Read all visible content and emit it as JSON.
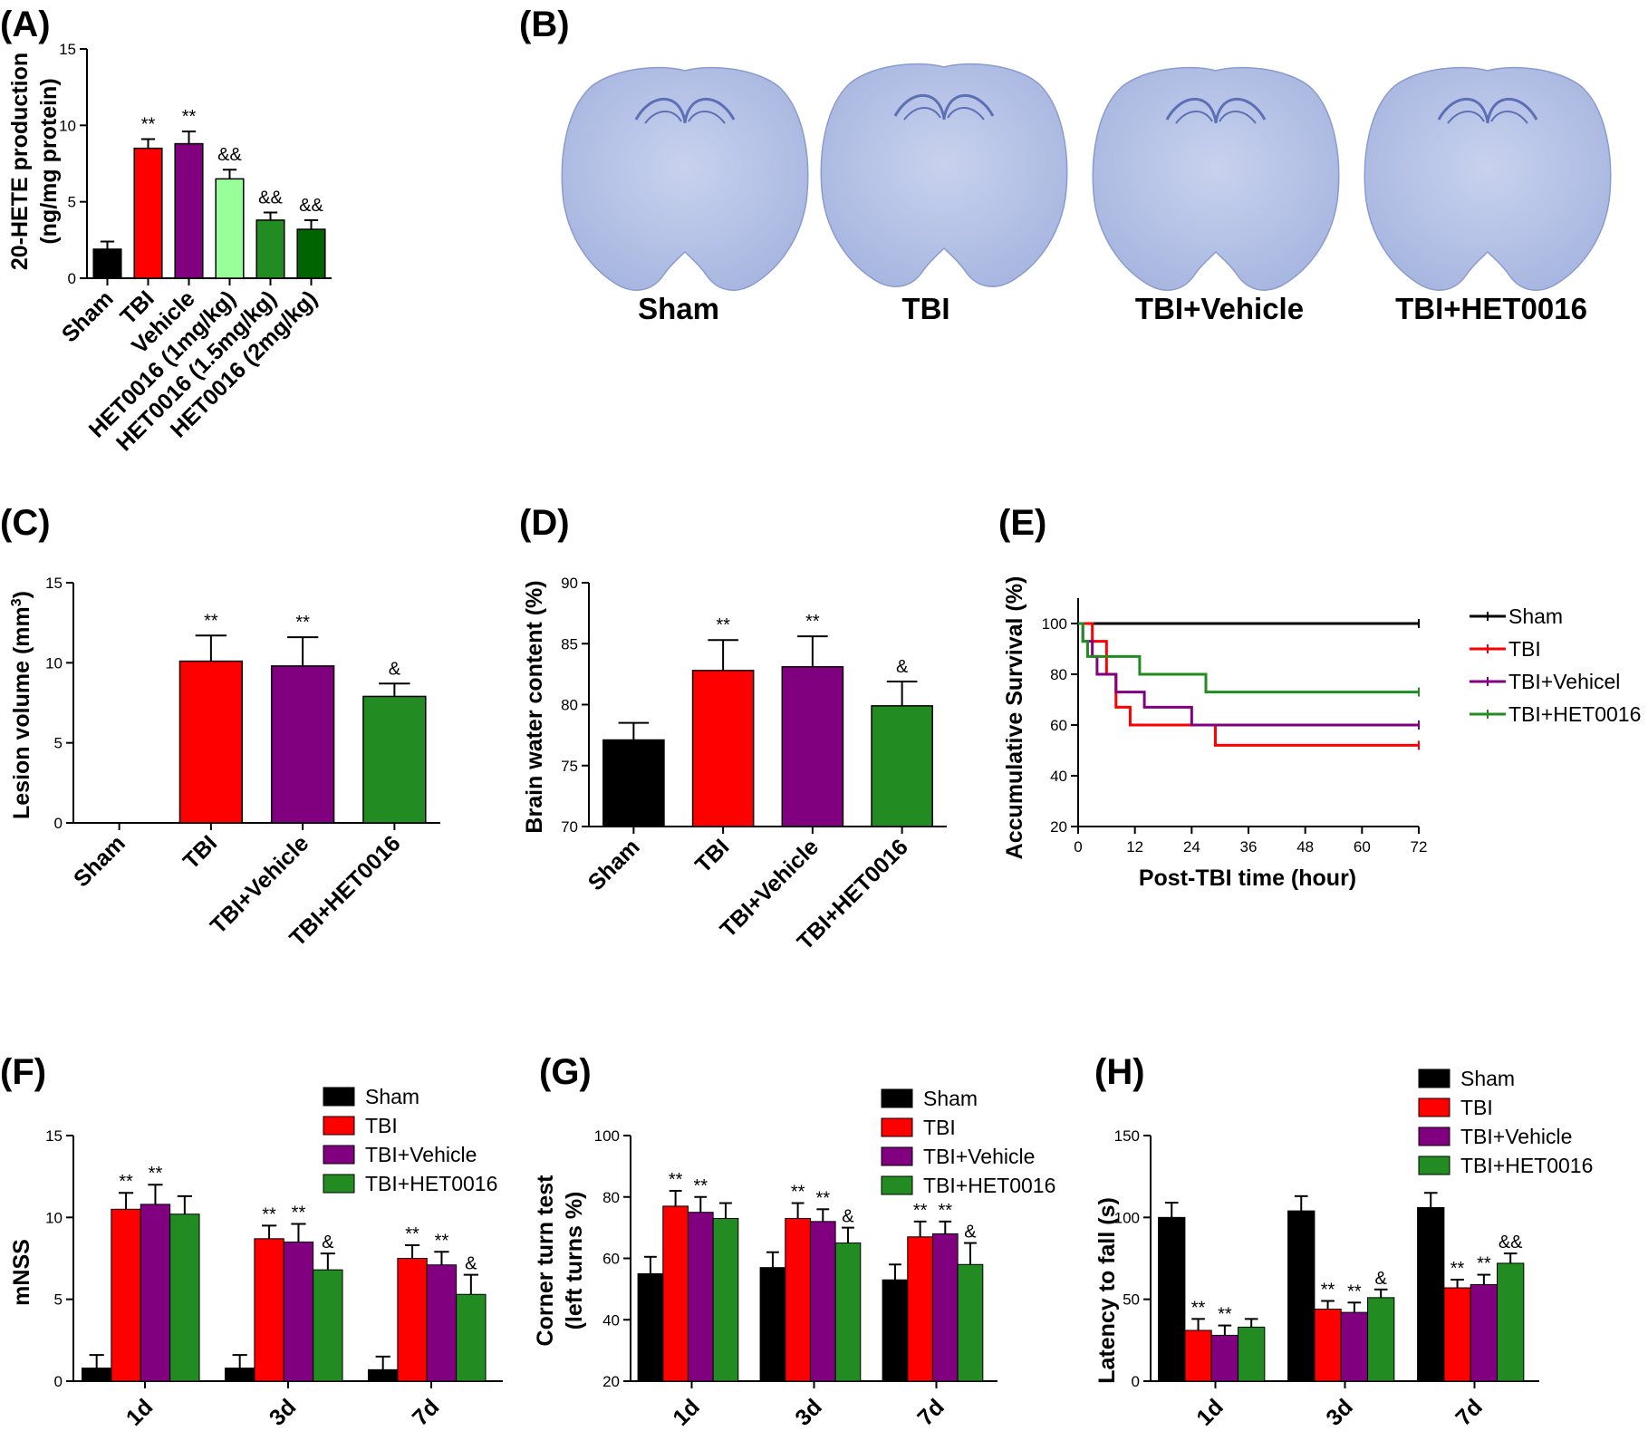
{
  "panels": {
    "A": {
      "label": "(A)",
      "chart_data": {
        "type": "bar",
        "ylabel_line1": "20-HETE production",
        "ylabel_line2": "(ng/mg protein)",
        "ylim": [
          0,
          15
        ],
        "yticks": [
          "0",
          "5",
          "10",
          "15"
        ],
        "categories": [
          "Sham",
          "TBI",
          "Vehicle",
          "HET0016 (1mg/kg)",
          "HET0016 (1.5mg/kg)",
          "HET0016 (2mg/kg)"
        ],
        "values": [
          1.9,
          8.5,
          8.8,
          6.5,
          3.8,
          3.2
        ],
        "errors": [
          0.5,
          0.6,
          0.8,
          0.6,
          0.5,
          0.6
        ],
        "annotations": [
          "",
          "**",
          "**",
          "&&",
          "&&",
          "&&"
        ],
        "colors": [
          "#000000",
          "#ff0000",
          "#800080",
          "#99ff99",
          "#228b22",
          "#006400"
        ]
      }
    },
    "B": {
      "label": "(B)",
      "image_labels": [
        "Sham",
        "TBI",
        "TBI+Vehicle",
        "TBI+HET0016"
      ]
    },
    "C": {
      "label": "(C)",
      "chart_data": {
        "type": "bar",
        "ylabel": "Lesion volume (mm",
        "ylabel_sup": "3",
        "ylabel_close": ")",
        "ylim": [
          0,
          15
        ],
        "yticks": [
          "0",
          "5",
          "10",
          "15"
        ],
        "categories": [
          "Sham",
          "TBI",
          "TBI+Vehicle",
          "TBI+HET0016"
        ],
        "values": [
          0,
          10.1,
          9.8,
          7.9
        ],
        "errors": [
          0,
          1.6,
          1.8,
          0.8
        ],
        "annotations": [
          "",
          "**",
          "**",
          "&"
        ],
        "colors": [
          "#000000",
          "#ff0000",
          "#800080",
          "#228b22"
        ]
      }
    },
    "D": {
      "label": "(D)",
      "chart_data": {
        "type": "bar",
        "ylabel": "Brain water content (%)",
        "ylim": [
          70,
          90
        ],
        "yticks": [
          "70",
          "75",
          "80",
          "85",
          "90"
        ],
        "categories": [
          "Sham",
          "TBI",
          "TBI+Vehicle",
          "TBI+HET0016"
        ],
        "values": [
          77.1,
          82.8,
          83.1,
          79.9
        ],
        "errors": [
          1.4,
          2.5,
          2.5,
          2.0
        ],
        "annotations": [
          "",
          "**",
          "**",
          "&"
        ],
        "colors": [
          "#000000",
          "#ff0000",
          "#800080",
          "#228b22"
        ]
      }
    },
    "E": {
      "label": "(E)",
      "chart_data": {
        "type": "line",
        "xlabel": "Post-TBI time (hour)",
        "ylabel": "Accumulative Survival (%)",
        "xlim": [
          0,
          72
        ],
        "ylim": [
          20,
          110
        ],
        "xticks": [
          "0",
          "12",
          "24",
          "36",
          "48",
          "60",
          "72"
        ],
        "yticks": [
          "20",
          "40",
          "60",
          "80",
          "100"
        ],
        "series": [
          {
            "name": "Sham",
            "color": "#000000",
            "steps": [
              [
                0,
                100
              ],
              [
                72,
                100
              ]
            ]
          },
          {
            "name": "TBI",
            "color": "#ff0000",
            "steps": [
              [
                0,
                100
              ],
              [
                3,
                93
              ],
              [
                6,
                80
              ],
              [
                8,
                67
              ],
              [
                11,
                60
              ],
              [
                29,
                52
              ],
              [
                72,
                52
              ]
            ]
          },
          {
            "name": "TBI+Vehicel",
            "color": "#800080",
            "steps": [
              [
                0,
                100
              ],
              [
                1,
                93
              ],
              [
                3,
                87
              ],
              [
                4,
                80
              ],
              [
                8,
                73
              ],
              [
                14,
                67
              ],
              [
                24,
                60
              ],
              [
                72,
                60
              ]
            ]
          },
          {
            "name": "TBI+HET0016",
            "color": "#228b22",
            "steps": [
              [
                0,
                100
              ],
              [
                1,
                93
              ],
              [
                2,
                87
              ],
              [
                13,
                80
              ],
              [
                27,
                73
              ],
              [
                72,
                73
              ]
            ]
          }
        ]
      }
    },
    "F": {
      "label": "(F)",
      "chart_data": {
        "type": "bar",
        "ylabel": "mNSS",
        "ylim": [
          0,
          15
        ],
        "yticks": [
          "0",
          "5",
          "10",
          "15"
        ],
        "categories": [
          "1d",
          "3d",
          "7d"
        ],
        "series": [
          {
            "name": "Sham",
            "color": "#000000",
            "values": [
              0.8,
              0.8,
              0.7
            ],
            "errors": [
              0.8,
              0.8,
              0.8
            ],
            "annotations": [
              "",
              "",
              ""
            ]
          },
          {
            "name": "TBI",
            "color": "#ff0000",
            "values": [
              10.5,
              8.7,
              7.5
            ],
            "errors": [
              1.0,
              0.8,
              0.8
            ],
            "annotations": [
              "**",
              "**",
              "**"
            ]
          },
          {
            "name": "TBI+Vehicle",
            "color": "#800080",
            "values": [
              10.8,
              8.5,
              7.1
            ],
            "errors": [
              1.2,
              1.1,
              0.8
            ],
            "annotations": [
              "**",
              "**",
              "**"
            ]
          },
          {
            "name": "TBI+HET0016",
            "color": "#228b22",
            "values": [
              10.2,
              6.8,
              5.3
            ],
            "errors": [
              1.1,
              1.0,
              1.2
            ],
            "annotations": [
              "",
              "&",
              "&"
            ]
          }
        ]
      }
    },
    "G": {
      "label": "(G)",
      "chart_data": {
        "type": "bar",
        "ylabel_line1": "Corner turn test",
        "ylabel_line2": "(left turns %)",
        "ylim": [
          20,
          100
        ],
        "yticks": [
          "20",
          "40",
          "60",
          "80",
          "100"
        ],
        "categories": [
          "1d",
          "3d",
          "7d"
        ],
        "series": [
          {
            "name": "Sham",
            "color": "#000000",
            "values": [
              55,
              57,
              53
            ],
            "errors": [
              5.5,
              5,
              5
            ],
            "annotations": [
              "",
              "",
              ""
            ]
          },
          {
            "name": "TBI",
            "color": "#ff0000",
            "values": [
              77,
              73,
              67
            ],
            "errors": [
              5,
              5,
              5
            ],
            "annotations": [
              "**",
              "**",
              "**"
            ]
          },
          {
            "name": "TBI+Vehicle",
            "color": "#800080",
            "values": [
              75,
              72,
              68
            ],
            "errors": [
              5,
              4,
              4
            ],
            "annotations": [
              "**",
              "**",
              "**"
            ]
          },
          {
            "name": "TBI+HET0016",
            "color": "#228b22",
            "values": [
              73,
              65,
              58
            ],
            "errors": [
              5,
              5,
              7
            ],
            "annotations": [
              "",
              "&",
              "&"
            ]
          }
        ]
      }
    },
    "H": {
      "label": "(H)",
      "chart_data": {
        "type": "bar",
        "ylabel": "Latency to fall (s)",
        "ylim": [
          0,
          150
        ],
        "yticks": [
          "0",
          "50",
          "100",
          "150"
        ],
        "categories": [
          "1d",
          "3d",
          "7d"
        ],
        "series": [
          {
            "name": "Sham",
            "color": "#000000",
            "values": [
              100,
              104,
              106
            ],
            "errors": [
              9,
              9,
              9
            ],
            "annotations": [
              "",
              "",
              ""
            ]
          },
          {
            "name": "TBI",
            "color": "#ff0000",
            "values": [
              31,
              44,
              57
            ],
            "errors": [
              7,
              5,
              5
            ],
            "annotations": [
              "**",
              "**",
              "**"
            ]
          },
          {
            "name": "TBI+Vehicle",
            "color": "#800080",
            "values": [
              28,
              42,
              59
            ],
            "errors": [
              6,
              6,
              6
            ],
            "annotations": [
              "**",
              "**",
              "**"
            ]
          },
          {
            "name": "TBI+HET0016",
            "color": "#228b22",
            "values": [
              33,
              51,
              72
            ],
            "errors": [
              5,
              5,
              6
            ],
            "annotations": [
              "",
              "&",
              "&&"
            ]
          }
        ]
      }
    }
  }
}
